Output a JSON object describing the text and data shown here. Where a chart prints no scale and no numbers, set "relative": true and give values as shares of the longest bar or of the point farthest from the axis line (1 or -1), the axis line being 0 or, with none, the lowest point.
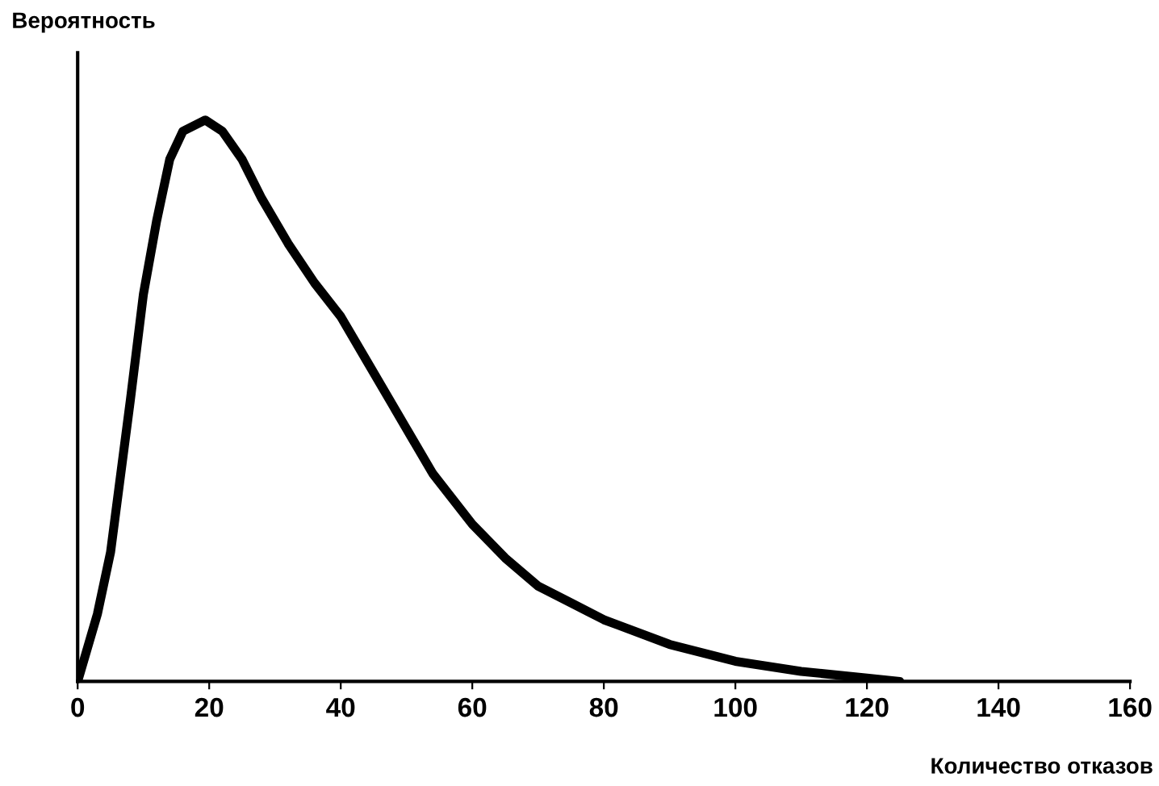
{
  "chart_data": {
    "type": "line",
    "relative": true,
    "xlabel": "Количество отказов",
    "ylabel": "Вероятность",
    "xlim": [
      0,
      160
    ],
    "xticks": [
      0,
      20,
      40,
      60,
      80,
      100,
      120,
      140,
      160
    ],
    "grid": false,
    "legend": false,
    "marker": "none",
    "line_style": "solid",
    "series": [
      {
        "color": "#000000",
        "x": [
          0,
          3,
          5,
          8,
          10,
          12,
          14,
          16,
          19.4,
          22,
          25,
          28,
          32,
          36,
          40,
          44,
          48,
          54,
          60,
          65,
          70,
          75,
          80,
          90,
          100,
          110,
          120,
          125
        ],
        "values": [
          0,
          0.12,
          0.23,
          0.5,
          0.69,
          0.82,
          0.93,
          0.98,
          1.0,
          0.98,
          0.93,
          0.86,
          0.78,
          0.71,
          0.65,
          0.57,
          0.49,
          0.37,
          0.28,
          0.22,
          0.17,
          0.14,
          0.11,
          0.066,
          0.036,
          0.018,
          0.006,
          0
        ]
      }
    ]
  }
}
